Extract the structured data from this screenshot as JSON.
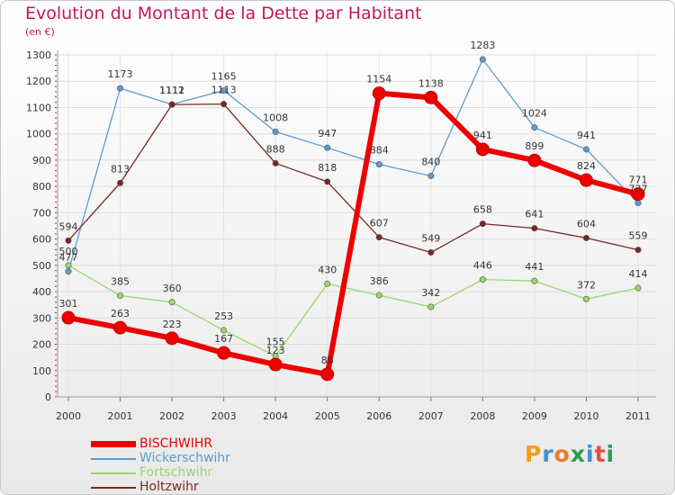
{
  "title": "Evolution du Montant de la Dette par Habitant",
  "unit": "(en €)",
  "logo": "Proxiti",
  "colors": {
    "bischwihr": "#ee0000",
    "wickerschwihr": "#5b9bd5",
    "fortschwihr": "#9ad56b",
    "holtzwihr": "#7a2626",
    "title": "#c2185b"
  },
  "chart_data": {
    "type": "line",
    "title": "Evolution du Montant de la Dette par Habitant",
    "ylabel": "(en €)",
    "xlabel": "",
    "x": [
      "2000",
      "2001",
      "2002",
      "2003",
      "2004",
      "2005",
      "2006",
      "2007",
      "2008",
      "2009",
      "2010",
      "2011"
    ],
    "ylim": [
      0,
      1300
    ],
    "yticks": [
      0,
      100,
      200,
      300,
      400,
      500,
      600,
      700,
      800,
      900,
      1000,
      1100,
      1200,
      1300
    ],
    "grid": true,
    "legend": "bottom-left",
    "series": [
      {
        "name": "BISCHWIHR",
        "color": "#ee0000",
        "width": 6,
        "marker": 7,
        "values": [
          301,
          263,
          223,
          167,
          123,
          86,
          1154,
          1138,
          941,
          899,
          824,
          771
        ]
      },
      {
        "name": "Wickerschwihr",
        "color": "#5b9bd5",
        "width": 1.3,
        "marker": 3.2,
        "values": [
          477,
          1173,
          1112,
          1165,
          1008,
          947,
          884,
          840,
          1283,
          1024,
          941,
          737
        ]
      },
      {
        "name": "Fortschwihr",
        "color": "#9ad56b",
        "width": 1.3,
        "marker": 3.2,
        "values": [
          500,
          385,
          360,
          253,
          155,
          430,
          386,
          342,
          446,
          441,
          372,
          414
        ]
      },
      {
        "name": "Holtzwihr",
        "color": "#7a2626",
        "width": 1.3,
        "marker": 3.2,
        "values": [
          594,
          813,
          1111,
          1113,
          888,
          818,
          607,
          549,
          658,
          641,
          604,
          559
        ]
      }
    ]
  }
}
